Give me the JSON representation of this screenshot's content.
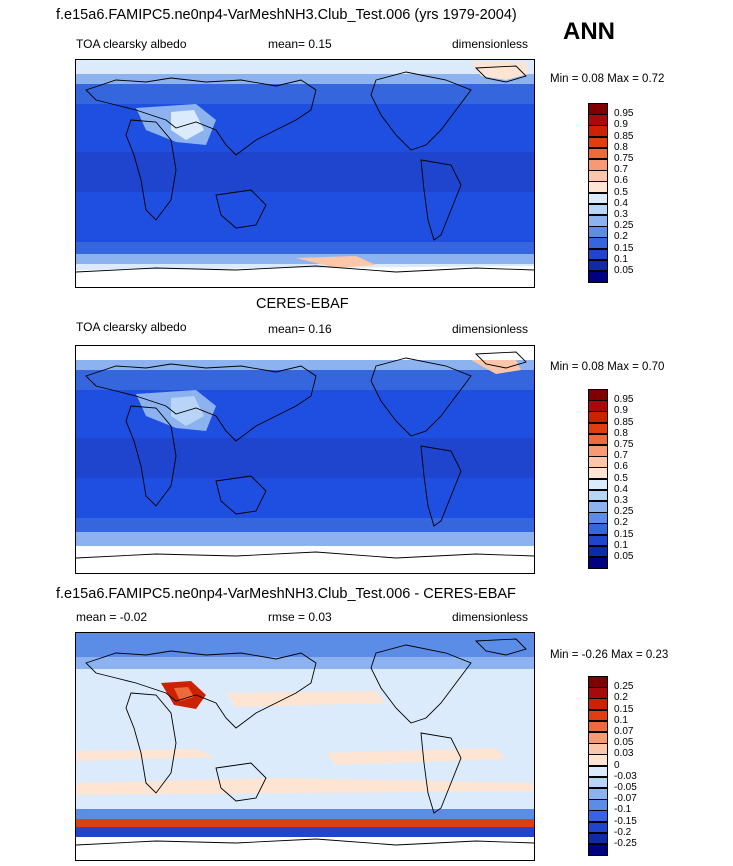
{
  "season": "ANN",
  "panels": [
    {
      "title": "f.e15a6.FAMIPC5.ne0np4-VarMeshNH3.Club_Test.006 (yrs 1979-2004)",
      "left_text": "TOA clearsky albedo",
      "center_text": "mean=  0.15",
      "right_text": "dimensionless",
      "minmax": "Min =  0.08 Max =  0.72",
      "colorbar": {
        "levels": [
          "0.95",
          "0.9",
          "0.85",
          "0.8",
          "0.75",
          "0.7",
          "0.6",
          "0.5",
          "0.4",
          "0.3",
          "0.25",
          "0.2",
          "0.15",
          "0.1",
          "0.05"
        ],
        "colors": [
          "#7f0000",
          "#a80a0a",
          "#cc2200",
          "#e03d10",
          "#ef6a3a",
          "#f59a72",
          "#fbc6a9",
          "#fde4d3",
          "#dcebfb",
          "#b8d4f6",
          "#8cb3f0",
          "#5b8ce6",
          "#3566de",
          "#1f45cf",
          "#0e2aa6",
          "#000080"
        ]
      }
    },
    {
      "title": "CERES-EBAF",
      "left_text": "TOA clearsky albedo",
      "center_text": "mean=  0.16",
      "right_text": "dimensionless",
      "minmax": "Min =  0.08 Max =  0.70",
      "colorbar": {
        "levels": [
          "0.95",
          "0.9",
          "0.85",
          "0.8",
          "0.75",
          "0.7",
          "0.6",
          "0.5",
          "0.4",
          "0.3",
          "0.25",
          "0.2",
          "0.15",
          "0.1",
          "0.05"
        ],
        "colors": [
          "#7f0000",
          "#a80a0a",
          "#cc2200",
          "#e03d10",
          "#ef6a3a",
          "#f59a72",
          "#fbc6a9",
          "#fde4d3",
          "#dcebfb",
          "#b8d4f6",
          "#8cb3f0",
          "#5b8ce6",
          "#3566de",
          "#1f45cf",
          "#0e2aa6",
          "#000080"
        ]
      }
    },
    {
      "title": "f.e15a6.FAMIPC5.ne0np4-VarMeshNH3.Club_Test.006 - CERES-EBAF",
      "left_text": "mean =  -0.02",
      "center_text": "rmse =  0.03",
      "right_text": "dimensionless",
      "minmax": "Min =  -0.26 Max =  0.23",
      "colorbar": {
        "levels": [
          "0.25",
          "0.2",
          "0.15",
          "0.1",
          "0.07",
          "0.05",
          "0.03",
          "0",
          "-0.03",
          "-0.05",
          "-0.07",
          "-0.1",
          "-0.15",
          "-0.2",
          "-0.25"
        ],
        "colors": [
          "#7f0000",
          "#a80a0a",
          "#cc2200",
          "#e03d10",
          "#ef6a3a",
          "#f59a72",
          "#fbc6a9",
          "#fde4d3",
          "#dcebfb",
          "#b8d4f6",
          "#8cb3f0",
          "#5b8ce6",
          "#3566de",
          "#1f45cf",
          "#0e2aa6",
          "#000080"
        ]
      }
    }
  ]
}
